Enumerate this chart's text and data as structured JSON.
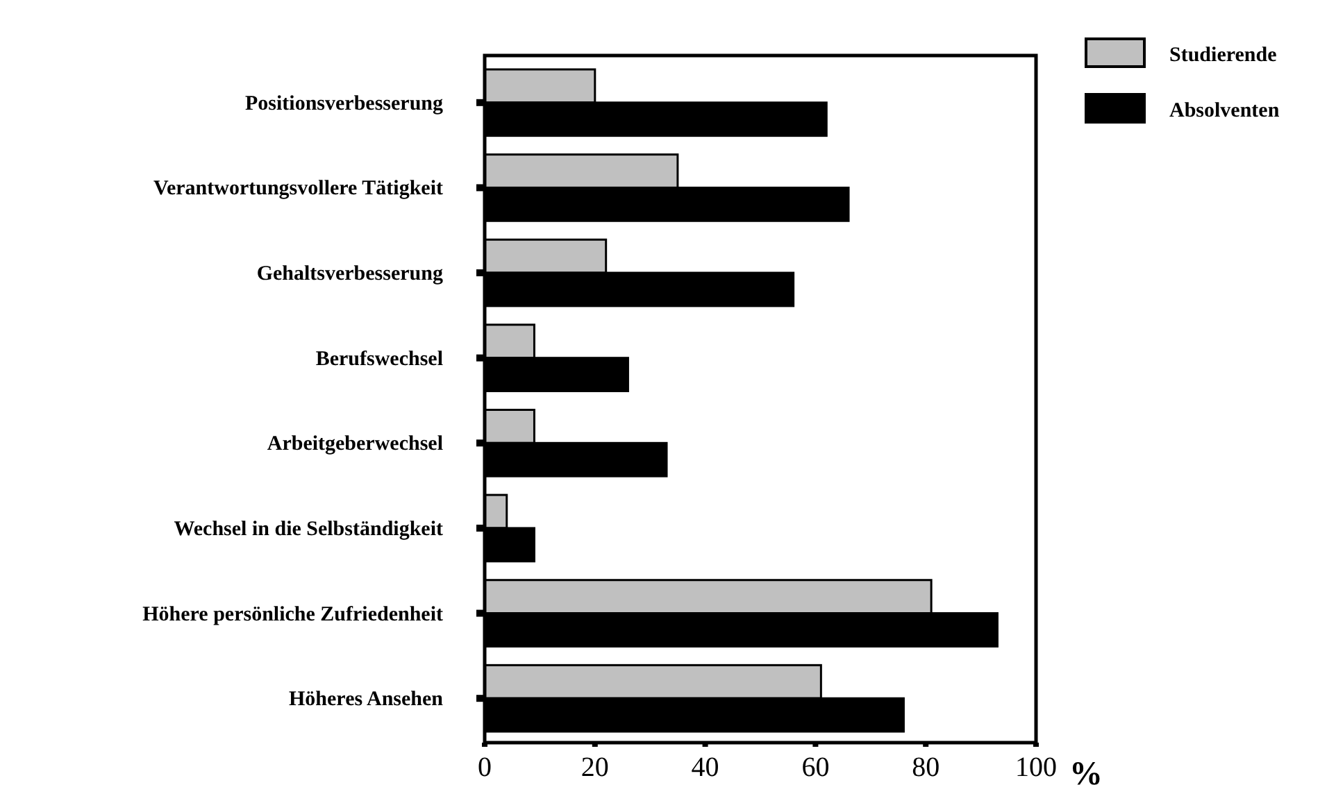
{
  "chart_data": {
    "type": "bar",
    "orientation": "horizontal",
    "xlabel": "%",
    "categories": [
      "Positionsverbesserung",
      "Verantwortungsvollere Tätigkeit",
      "Gehaltsverbesserung",
      "Berufswechsel",
      "Arbeitgeberwechsel",
      "Wechsel in die Selbständigkeit",
      "Höhere persönliche Zufriedenheit",
      "Höheres Ansehen"
    ],
    "series": [
      {
        "name": "Studierende",
        "color": "#c0c0c0",
        "values": [
          20,
          35,
          22,
          9,
          9,
          4,
          81,
          61
        ]
      },
      {
        "name": "Absolventen",
        "color": "#000000",
        "values": [
          62,
          66,
          56,
          26,
          33,
          9,
          93,
          76
        ]
      }
    ],
    "xlim": [
      0,
      100
    ],
    "xticks": [
      0,
      20,
      40,
      60,
      80,
      100
    ],
    "grid": false,
    "legend": "top right"
  }
}
